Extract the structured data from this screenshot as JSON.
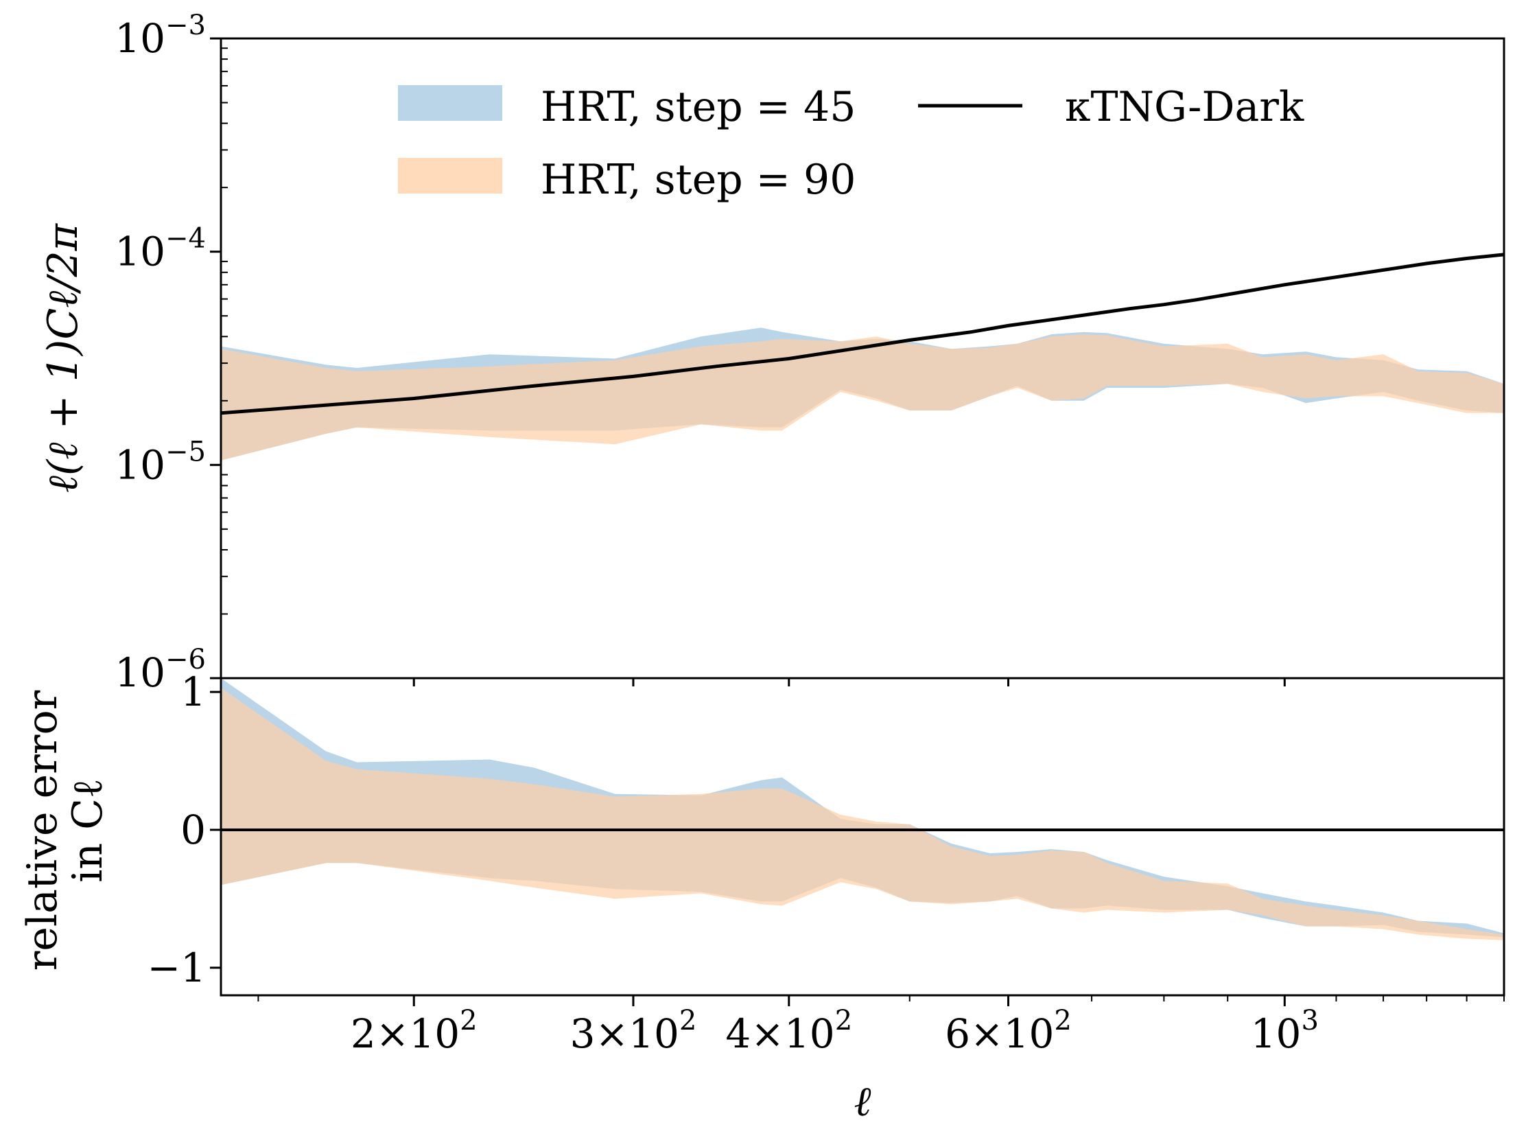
{
  "chart_data": [
    {
      "panel": "top",
      "type": "area",
      "yscale": "log",
      "xscale": "log",
      "ylabel": "ℓ(ℓ + 1)Cℓ/2π",
      "xlim": [
        140,
        1500
      ],
      "ylim": [
        1e-06,
        0.001
      ],
      "y_ticks": [
        {
          "value": 0.001,
          "base": "10",
          "exp": "−3"
        },
        {
          "value": 0.0001,
          "base": "10",
          "exp": "−4"
        },
        {
          "value": 1e-05,
          "base": "10",
          "exp": "−5"
        },
        {
          "value": 1e-06,
          "base": "10",
          "exp": "−6"
        }
      ],
      "x": [
        140,
        170,
        180,
        230,
        290,
        340,
        380,
        395,
        440,
        470,
        500,
        540,
        580,
        610,
        650,
        690,
        720,
        800,
        900,
        960,
        1040,
        1100,
        1200,
        1280,
        1400,
        1500
      ],
      "series": [
        {
          "name": "HRT, step = 45",
          "kind": "band",
          "color": "#a6c8e2",
          "upper": [
            3.6e-05,
            2.95e-05,
            2.85e-05,
            3.3e-05,
            3.15e-05,
            4e-05,
            4.4e-05,
            4.2e-05,
            3.8e-05,
            3.9e-05,
            3.8e-05,
            3.5e-05,
            3.6e-05,
            3.7e-05,
            4.1e-05,
            4.2e-05,
            4.15e-05,
            3.7e-05,
            3.5e-05,
            3.3e-05,
            3.4e-05,
            3.2e-05,
            3.1e-05,
            2.8e-05,
            2.75e-05,
            2.4e-05
          ],
          "lower": [
            1.05e-05,
            1.4e-05,
            1.5e-05,
            1.45e-05,
            1.45e-05,
            1.55e-05,
            1.5e-05,
            1.5e-05,
            2.25e-05,
            2.05e-05,
            1.8e-05,
            1.8e-05,
            2.1e-05,
            2.35e-05,
            2e-05,
            2e-05,
            2.3e-05,
            2.3e-05,
            2.4e-05,
            2.3e-05,
            1.95e-05,
            2.05e-05,
            2.2e-05,
            2e-05,
            1.8e-05,
            1.75e-05
          ]
        },
        {
          "name": "HRT, step = 90",
          "kind": "band",
          "color": "#ffd0a8",
          "upper": [
            3.5e-05,
            2.85e-05,
            2.75e-05,
            2.9e-05,
            3.1e-05,
            3.6e-05,
            3.8e-05,
            3.9e-05,
            3.8e-05,
            4e-05,
            3.7e-05,
            3.5e-05,
            3.55e-05,
            3.7e-05,
            4e-05,
            4.1e-05,
            4.05e-05,
            3.6e-05,
            3.7e-05,
            3.2e-05,
            3.3e-05,
            3.1e-05,
            3.3e-05,
            2.75e-05,
            2.7e-05,
            2.4e-05
          ],
          "lower": [
            1.05e-05,
            1.4e-05,
            1.5e-05,
            1.35e-05,
            1.25e-05,
            1.55e-05,
            1.45e-05,
            1.45e-05,
            2.2e-05,
            2e-05,
            1.8e-05,
            1.8e-05,
            2.1e-05,
            2.3e-05,
            2e-05,
            2.05e-05,
            2.35e-05,
            2.35e-05,
            2.4e-05,
            2.2e-05,
            2.05e-05,
            2.1e-05,
            2.1e-05,
            1.95e-05,
            1.75e-05,
            1.75e-05
          ]
        },
        {
          "name": "κTNG-Dark",
          "kind": "line",
          "color": "#000000",
          "x": [
            140,
            200,
            250,
            300,
            350,
            400,
            450,
            500,
            560,
            600,
            650,
            700,
            750,
            800,
            850,
            900,
            1000,
            1100,
            1200,
            1300,
            1400,
            1500
          ],
          "values": [
            1.75e-05,
            2.05e-05,
            2.35e-05,
            2.6e-05,
            2.9e-05,
            3.15e-05,
            3.5e-05,
            3.85e-05,
            4.2e-05,
            4.5e-05,
            4.8e-05,
            5.1e-05,
            5.4e-05,
            5.65e-05,
            5.95e-05,
            6.3e-05,
            7e-05,
            7.6e-05,
            8.2e-05,
            8.8e-05,
            9.3e-05,
            9.7e-05
          ]
        }
      ],
      "legend": {
        "placement": "upper-left",
        "entries": [
          {
            "label": "HRT, step = 45",
            "swatch": "patch",
            "color": "#a6c8e2"
          },
          {
            "label": "HRT, step = 90",
            "swatch": "patch",
            "color": "#ffd0a8"
          },
          {
            "label": "κTNG-Dark",
            "swatch": "line",
            "color": "#000000"
          }
        ]
      }
    },
    {
      "panel": "bottom",
      "type": "area",
      "yscale": "linear",
      "xscale": "log",
      "ylabel_lines": [
        "relative error",
        "in Cℓ"
      ],
      "xlabel": "ℓ",
      "xlim": [
        140,
        1500
      ],
      "ylim": [
        -1.2,
        1.1
      ],
      "reference_line": 0,
      "y_ticks": [
        {
          "value": 1,
          "label": "1"
        },
        {
          "value": 0,
          "label": "0"
        },
        {
          "value": -1,
          "label": "−1"
        }
      ],
      "x_ticks": [
        {
          "value": 200,
          "label": "2×10",
          "exp": "2"
        },
        {
          "value": 300,
          "label": "3×10",
          "exp": "2"
        },
        {
          "value": 400,
          "label": "4×10",
          "exp": "2"
        },
        {
          "value": 600,
          "label": "6×10",
          "exp": "2"
        },
        {
          "value": 1000,
          "label": "10",
          "exp": "3"
        }
      ],
      "x": [
        140,
        170,
        180,
        230,
        250,
        290,
        340,
        380,
        395,
        440,
        470,
        500,
        540,
        580,
        610,
        650,
        690,
        720,
        800,
        900,
        960,
        1040,
        1100,
        1200,
        1280,
        1400,
        1500
      ],
      "series": [
        {
          "name": "HRT, step = 45",
          "kind": "band",
          "color": "#a6c8e2",
          "upper": [
            1.1,
            0.57,
            0.49,
            0.51,
            0.45,
            0.26,
            0.25,
            0.36,
            0.38,
            0.08,
            0.04,
            0.04,
            -0.1,
            -0.17,
            -0.16,
            -0.14,
            -0.16,
            -0.22,
            -0.34,
            -0.41,
            -0.46,
            -0.52,
            -0.55,
            -0.6,
            -0.66,
            -0.68,
            -0.75
          ],
          "lower": [
            -0.4,
            -0.24,
            -0.24,
            -0.35,
            -0.37,
            -0.43,
            -0.45,
            -0.52,
            -0.52,
            -0.35,
            -0.42,
            -0.52,
            -0.53,
            -0.52,
            -0.48,
            -0.57,
            -0.57,
            -0.55,
            -0.58,
            -0.58,
            -0.64,
            -0.7,
            -0.7,
            -0.69,
            -0.74,
            -0.76,
            -0.78
          ]
        },
        {
          "name": "HRT, step = 90",
          "kind": "band",
          "color": "#ffd0a8",
          "upper": [
            1.03,
            0.5,
            0.44,
            0.37,
            0.33,
            0.24,
            0.26,
            0.3,
            0.3,
            0.11,
            0.06,
            0.04,
            -0.12,
            -0.19,
            -0.18,
            -0.15,
            -0.16,
            -0.24,
            -0.37,
            -0.39,
            -0.5,
            -0.55,
            -0.58,
            -0.62,
            -0.66,
            -0.72,
            -0.76
          ],
          "lower": [
            -0.4,
            -0.24,
            -0.24,
            -0.37,
            -0.42,
            -0.5,
            -0.46,
            -0.54,
            -0.55,
            -0.38,
            -0.43,
            -0.52,
            -0.54,
            -0.52,
            -0.5,
            -0.57,
            -0.6,
            -0.58,
            -0.6,
            -0.58,
            -0.62,
            -0.7,
            -0.7,
            -0.72,
            -0.76,
            -0.79,
            -0.8
          ]
        }
      ]
    }
  ]
}
